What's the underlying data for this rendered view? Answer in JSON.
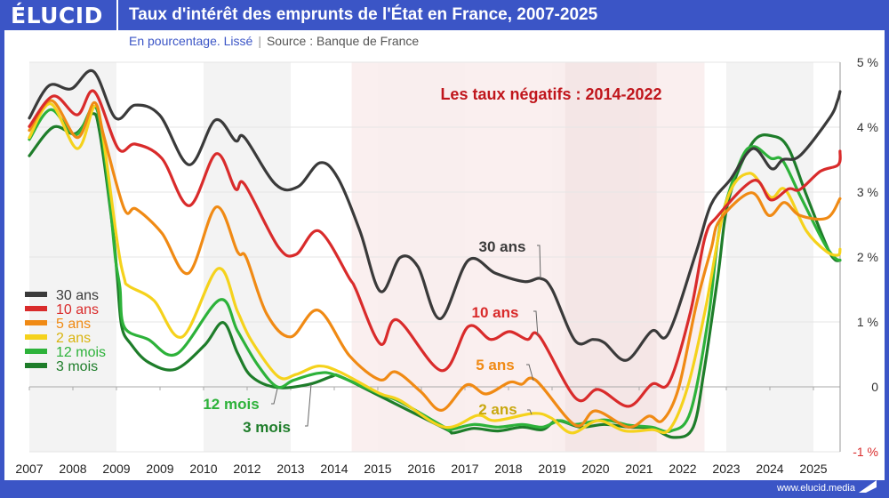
{
  "header": {
    "logo": "ÉLUCID",
    "title": "Taux d'intérêt des emprunts de l'État en France, 2007-2025",
    "subtitle_left": "En pourcentage. Lissé",
    "subtitle_sep": "|",
    "subtitle_right": "Source : Banque de France"
  },
  "footer": {
    "url": "www.elucid.media"
  },
  "colors": {
    "brand": "#3b55c6",
    "negative_period": "#f9ecec",
    "annotation": "#c0161c"
  },
  "chart_data": {
    "type": "line",
    "title": "Taux d'intérêt des emprunts de l'État en France, 2007-2025",
    "ylabel": "",
    "xlabel": "",
    "ylim": [
      -1,
      5
    ],
    "xlim": [
      2007,
      2025.6
    ],
    "grid": true,
    "legend": "left",
    "x_tick_labels": [
      "2007",
      "2008",
      "2009",
      "2009",
      "2010",
      "2012",
      "2013",
      "2014",
      "2015",
      "2016",
      "2017",
      "2018",
      "2019",
      "2020",
      "2021",
      "2022",
      "2023",
      "2024",
      "2025"
    ],
    "y_ticks": [
      {
        "value": 5,
        "label": "5 %"
      },
      {
        "value": 4,
        "label": "4 %"
      },
      {
        "value": 3,
        "label": "3 %"
      },
      {
        "value": 2,
        "label": "2 %"
      },
      {
        "value": 1,
        "label": "1 %"
      },
      {
        "value": 0,
        "label": "0"
      },
      {
        "value": -1,
        "label": "-1 %"
      }
    ],
    "shaded_period": {
      "label": "Les taux négatifs : 2014-2022",
      "from": 2014.4,
      "to": 2022.5
    },
    "series": [
      {
        "name": "30 ans",
        "color": "#3a3a3a",
        "label": "30 ans",
        "points": [
          [
            2007.0,
            4.14
          ],
          [
            2007.45,
            4.64
          ],
          [
            2007.96,
            4.59
          ],
          [
            2008.47,
            4.86
          ],
          [
            2008.98,
            4.14
          ],
          [
            2009.43,
            4.34
          ],
          [
            2010.0,
            4.18
          ],
          [
            2010.67,
            3.42
          ],
          [
            2011.27,
            4.11
          ],
          [
            2011.73,
            3.79
          ],
          [
            2011.94,
            3.84
          ],
          [
            2012.65,
            3.12
          ],
          [
            2013.16,
            3.08
          ],
          [
            2013.67,
            3.45
          ],
          [
            2014.08,
            3.22
          ],
          [
            2014.59,
            2.4
          ],
          [
            2015.06,
            1.47
          ],
          [
            2015.51,
            1.99
          ],
          [
            2015.92,
            1.85
          ],
          [
            2016.43,
            1.05
          ],
          [
            2017.08,
            1.95
          ],
          [
            2017.7,
            1.75
          ],
          [
            2018.37,
            1.62
          ],
          [
            2018.73,
            1.67
          ],
          [
            2019.0,
            1.5
          ],
          [
            2019.53,
            0.71
          ],
          [
            2019.94,
            0.73
          ],
          [
            2020.2,
            0.68
          ],
          [
            2020.71,
            0.41
          ],
          [
            2021.29,
            0.86
          ],
          [
            2021.67,
            0.82
          ],
          [
            2022.31,
            2.08
          ],
          [
            2022.65,
            2.81
          ],
          [
            2023.1,
            3.2
          ],
          [
            2023.61,
            3.67
          ],
          [
            2024.04,
            3.36
          ],
          [
            2024.3,
            3.5
          ],
          [
            2024.69,
            3.56
          ],
          [
            2025.37,
            4.14
          ],
          [
            2025.55,
            4.4
          ],
          [
            2025.61,
            4.55
          ]
        ]
      },
      {
        "name": "10 ans",
        "color": "#d92b2b",
        "label": "10 ans",
        "points": [
          [
            2007.0,
            4.01
          ],
          [
            2007.55,
            4.48
          ],
          [
            2008.1,
            4.19
          ],
          [
            2008.49,
            4.55
          ],
          [
            2009.04,
            3.67
          ],
          [
            2009.43,
            3.74
          ],
          [
            2010.04,
            3.52
          ],
          [
            2010.67,
            2.79
          ],
          [
            2011.29,
            3.59
          ],
          [
            2011.73,
            3.05
          ],
          [
            2011.94,
            3.12
          ],
          [
            2012.71,
            2.16
          ],
          [
            2013.12,
            2.04
          ],
          [
            2013.65,
            2.4
          ],
          [
            2014.35,
            1.67
          ],
          [
            2014.49,
            1.51
          ],
          [
            2015.06,
            0.66
          ],
          [
            2015.45,
            1.03
          ],
          [
            2016.47,
            0.25
          ],
          [
            2017.08,
            0.93
          ],
          [
            2017.59,
            0.73
          ],
          [
            2018.02,
            0.85
          ],
          [
            2018.43,
            0.73
          ],
          [
            2018.71,
            0.78
          ],
          [
            2019.55,
            -0.18
          ],
          [
            2020.06,
            -0.04
          ],
          [
            2020.76,
            -0.3
          ],
          [
            2021.29,
            0.04
          ],
          [
            2021.69,
            0.07
          ],
          [
            2022.18,
            1.16
          ],
          [
            2022.51,
            2.3
          ],
          [
            2022.8,
            2.63
          ],
          [
            2023.63,
            3.18
          ],
          [
            2024.02,
            2.88
          ],
          [
            2024.43,
            3.05
          ],
          [
            2024.69,
            3.04
          ],
          [
            2025.16,
            3.32
          ],
          [
            2025.57,
            3.42
          ],
          [
            2025.61,
            3.63
          ]
        ]
      },
      {
        "name": "5 ans",
        "color": "#f08a14",
        "label": "5 ans",
        "points": [
          [
            2007.0,
            3.95
          ],
          [
            2007.51,
            4.41
          ],
          [
            2008.1,
            3.84
          ],
          [
            2008.49,
            4.38
          ],
          [
            2008.71,
            3.86
          ],
          [
            2009.18,
            2.74
          ],
          [
            2009.45,
            2.74
          ],
          [
            2010.04,
            2.37
          ],
          [
            2010.65,
            1.75
          ],
          [
            2011.29,
            2.77
          ],
          [
            2011.78,
            2.08
          ],
          [
            2011.98,
            1.99
          ],
          [
            2012.45,
            1.12
          ],
          [
            2013.0,
            0.77
          ],
          [
            2013.63,
            1.18
          ],
          [
            2014.35,
            0.48
          ],
          [
            2015.04,
            0.11
          ],
          [
            2015.41,
            0.23
          ],
          [
            2015.98,
            -0.07
          ],
          [
            2016.47,
            -0.36
          ],
          [
            2017.04,
            0.03
          ],
          [
            2017.49,
            -0.11
          ],
          [
            2018.02,
            0.07
          ],
          [
            2018.3,
            0.04
          ],
          [
            2018.63,
            0.1
          ],
          [
            2019.53,
            -0.59
          ],
          [
            2020.0,
            -0.37
          ],
          [
            2020.76,
            -0.62
          ],
          [
            2021.22,
            -0.45
          ],
          [
            2021.53,
            -0.52
          ],
          [
            2021.9,
            -0.03
          ],
          [
            2022.31,
            1.26
          ],
          [
            2022.65,
            2.12
          ],
          [
            2022.86,
            2.58
          ],
          [
            2023.57,
            2.99
          ],
          [
            2023.98,
            2.64
          ],
          [
            2024.33,
            2.84
          ],
          [
            2024.69,
            2.64
          ],
          [
            2025.31,
            2.6
          ],
          [
            2025.61,
            2.9
          ]
        ]
      },
      {
        "name": "2 ans",
        "color": "#f5d21c",
        "label": "2 ans",
        "points": [
          [
            2007.0,
            3.84
          ],
          [
            2007.49,
            4.36
          ],
          [
            2008.1,
            3.67
          ],
          [
            2008.49,
            4.32
          ],
          [
            2008.67,
            3.95
          ],
          [
            2009.02,
            2.22
          ],
          [
            2009.18,
            1.67
          ],
          [
            2009.29,
            1.55
          ],
          [
            2009.86,
            1.33
          ],
          [
            2010.51,
            0.77
          ],
          [
            2011.33,
            1.82
          ],
          [
            2011.78,
            1.16
          ],
          [
            2012.1,
            0.71
          ],
          [
            2012.71,
            0.16
          ],
          [
            2013.12,
            0.19
          ],
          [
            2013.63,
            0.32
          ],
          [
            2014.12,
            0.23
          ],
          [
            2015.04,
            -0.1
          ],
          [
            2015.51,
            -0.21
          ],
          [
            2016.53,
            -0.62
          ],
          [
            2017.29,
            -0.44
          ],
          [
            2017.69,
            -0.52
          ],
          [
            2018.57,
            -0.41
          ],
          [
            2018.98,
            -0.48
          ],
          [
            2019.45,
            -0.71
          ],
          [
            2020.06,
            -0.52
          ],
          [
            2020.67,
            -0.68
          ],
          [
            2021.29,
            -0.66
          ],
          [
            2021.69,
            -0.66
          ],
          [
            2022.1,
            -0.03
          ],
          [
            2022.51,
            1.16
          ],
          [
            2023.0,
            2.85
          ],
          [
            2023.53,
            3.29
          ],
          [
            2024.02,
            2.92
          ],
          [
            2024.35,
            3.04
          ],
          [
            2024.84,
            2.4
          ],
          [
            2025.31,
            2.08
          ],
          [
            2025.57,
            2.03
          ],
          [
            2025.61,
            2.12
          ]
        ]
      },
      {
        "name": "12 mois",
        "color": "#2db23a",
        "label": "12 mois",
        "points": [
          [
            2007.0,
            3.81
          ],
          [
            2007.49,
            4.27
          ],
          [
            2008.06,
            3.88
          ],
          [
            2008.47,
            4.32
          ],
          [
            2008.65,
            3.95
          ],
          [
            2008.84,
            2.9
          ],
          [
            2008.98,
            1.95
          ],
          [
            2009.08,
            1.53
          ],
          [
            2009.18,
            0.92
          ],
          [
            2009.73,
            0.73
          ],
          [
            2010.39,
            0.51
          ],
          [
            2011.37,
            1.34
          ],
          [
            2011.78,
            0.86
          ],
          [
            2012.24,
            0.34
          ],
          [
            2012.69,
            0.0
          ],
          [
            2013.06,
            0.1
          ],
          [
            2013.63,
            0.21
          ],
          [
            2014.04,
            0.18
          ],
          [
            2015.04,
            -0.11
          ],
          [
            2015.51,
            -0.23
          ],
          [
            2016.53,
            -0.62
          ],
          [
            2016.67,
            -0.66
          ],
          [
            2017.2,
            -0.58
          ],
          [
            2017.76,
            -0.62
          ],
          [
            2018.31,
            -0.58
          ],
          [
            2018.78,
            -0.62
          ],
          [
            2019.18,
            -0.52
          ],
          [
            2019.53,
            -0.58
          ],
          [
            2020.2,
            -0.51
          ],
          [
            2020.76,
            -0.59
          ],
          [
            2021.29,
            -0.62
          ],
          [
            2021.73,
            -0.68
          ],
          [
            2022.18,
            -0.38
          ],
          [
            2022.59,
            1.07
          ],
          [
            2022.86,
            2.49
          ],
          [
            2023.33,
            3.49
          ],
          [
            2023.63,
            3.7
          ],
          [
            2024.02,
            3.52
          ],
          [
            2024.29,
            3.49
          ],
          [
            2024.69,
            2.95
          ],
          [
            2025.24,
            2.22
          ],
          [
            2025.49,
            1.99
          ],
          [
            2025.61,
            1.95
          ]
        ]
      },
      {
        "name": "3 mois",
        "color": "#1e7d2a",
        "label": "3 mois",
        "points": [
          [
            2007.0,
            3.56
          ],
          [
            2007.55,
            4.0
          ],
          [
            2008.06,
            3.9
          ],
          [
            2008.45,
            4.21
          ],
          [
            2008.62,
            3.9
          ],
          [
            2008.92,
            2.4
          ],
          [
            2009.02,
            1.67
          ],
          [
            2009.12,
            0.93
          ],
          [
            2009.33,
            0.66
          ],
          [
            2009.73,
            0.38
          ],
          [
            2010.35,
            0.27
          ],
          [
            2011.02,
            0.64
          ],
          [
            2011.45,
            0.99
          ],
          [
            2011.78,
            0.52
          ],
          [
            2012.1,
            0.16
          ],
          [
            2012.69,
            -0.01
          ],
          [
            2013.43,
            0.04
          ],
          [
            2013.94,
            0.16
          ],
          [
            2014.14,
            0.16
          ],
          [
            2015.04,
            -0.14
          ],
          [
            2016.53,
            -0.64
          ],
          [
            2016.73,
            -0.71
          ],
          [
            2017.2,
            -0.64
          ],
          [
            2017.76,
            -0.68
          ],
          [
            2018.31,
            -0.62
          ],
          [
            2018.78,
            -0.66
          ],
          [
            2019.12,
            -0.52
          ],
          [
            2019.65,
            -0.62
          ],
          [
            2020.2,
            -0.58
          ],
          [
            2020.76,
            -0.62
          ],
          [
            2021.29,
            -0.64
          ],
          [
            2021.8,
            -0.78
          ],
          [
            2022.24,
            -0.62
          ],
          [
            2022.49,
            0.25
          ],
          [
            2022.8,
            1.67
          ],
          [
            2023.06,
            2.9
          ],
          [
            2023.61,
            3.77
          ],
          [
            2024.08,
            3.86
          ],
          [
            2024.43,
            3.67
          ],
          [
            2024.84,
            2.95
          ],
          [
            2025.31,
            2.16
          ],
          [
            2025.49,
            1.96
          ],
          [
            2025.61,
            1.95
          ]
        ]
      }
    ]
  }
}
